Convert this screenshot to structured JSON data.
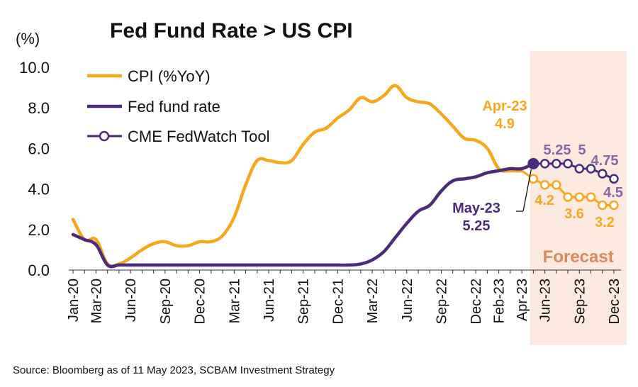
{
  "colors": {
    "cpi": "#F5A81C",
    "fed": "#4B2A7B",
    "cme": "#4B2A7B",
    "cme_marker_fill": "#ffffff",
    "cpi_forecast_marker_fill": "#ffffff",
    "forecast_band": "#FCE9DF",
    "forecast_text": "#D9895A",
    "annotation_cpi": "#F5A81C",
    "annotation_fed": "#4B2A7B",
    "annotation_cme": "#8666A8"
  },
  "chart_data": {
    "type": "line",
    "title": "Fed Fund Rate > US CPI",
    "ylabel": "(%)",
    "ylim": [
      0,
      10
    ],
    "yticks": [
      "0.0",
      "2.0",
      "4.0",
      "6.0",
      "8.0",
      "10.0"
    ],
    "x_tick_labels": [
      "Jan-20",
      "Mar-20",
      "Jun-20",
      "Sep-20",
      "Dec-20",
      "Mar-21",
      "Jun-21",
      "Sep-21",
      "Dec-21",
      "Mar-22",
      "Jun-22",
      "Sep-22",
      "Dec-22",
      "Feb-23",
      "Apr-23",
      "Jun-23",
      "Sep-23",
      "Dec-23"
    ],
    "x_tick_positions": [
      0,
      2,
      5,
      8,
      11,
      14,
      17,
      20,
      23,
      26,
      29,
      32,
      35,
      37,
      39,
      41,
      44,
      47
    ],
    "x_count": 48,
    "legend": [
      "CPI (%YoY)",
      "Fed fund rate",
      "CME FedWatch Tool"
    ],
    "series": [
      {
        "name": "CPI (%YoY)",
        "x": [
          0,
          1,
          2,
          3,
          4,
          5,
          6,
          7,
          8,
          9,
          10,
          11,
          12,
          13,
          14,
          15,
          16,
          17,
          18,
          19,
          20,
          21,
          22,
          23,
          24,
          25,
          26,
          27,
          28,
          29,
          30,
          31,
          32,
          33,
          34,
          35,
          36,
          37,
          38,
          39
        ],
        "values": [
          2.5,
          1.5,
          1.5,
          0.3,
          0.3,
          0.6,
          1.0,
          1.3,
          1.4,
          1.2,
          1.2,
          1.4,
          1.4,
          1.7,
          2.6,
          4.2,
          5.4,
          5.4,
          5.3,
          5.4,
          6.2,
          6.8,
          7.0,
          7.5,
          7.9,
          8.5,
          8.3,
          8.6,
          9.1,
          8.5,
          8.3,
          8.2,
          7.7,
          7.1,
          6.5,
          6.4,
          6.0,
          5.0,
          4.9,
          4.9
        ]
      },
      {
        "name": "Fed fund rate",
        "x": [
          0,
          1,
          2,
          3,
          4,
          5,
          6,
          7,
          8,
          9,
          10,
          11,
          12,
          13,
          14,
          15,
          16,
          17,
          18,
          19,
          20,
          21,
          22,
          23,
          24,
          25,
          26,
          27,
          28,
          29,
          30,
          31,
          32,
          33,
          34,
          35,
          36,
          37,
          38,
          39,
          40
        ],
        "values": [
          1.75,
          1.5,
          1.25,
          0.25,
          0.25,
          0.25,
          0.25,
          0.25,
          0.25,
          0.25,
          0.25,
          0.25,
          0.25,
          0.25,
          0.25,
          0.25,
          0.25,
          0.25,
          0.25,
          0.25,
          0.25,
          0.25,
          0.25,
          0.25,
          0.25,
          0.3,
          0.5,
          0.9,
          1.6,
          2.3,
          2.9,
          3.2,
          3.9,
          4.4,
          4.5,
          4.6,
          4.8,
          4.9,
          5.0,
          5.0,
          5.25
        ]
      },
      {
        "name": "CME FedWatch Tool",
        "x": [
          40,
          41,
          42,
          43,
          44,
          45,
          46,
          47
        ],
        "values": [
          5.25,
          5.25,
          5.25,
          5.25,
          5.0,
          5.0,
          4.75,
          4.5
        ]
      },
      {
        "name": "",
        "x": [
          39,
          40,
          41,
          42,
          43,
          44,
          45,
          46,
          47
        ],
        "values": [
          4.9,
          4.5,
          4.2,
          4.2,
          3.6,
          3.6,
          3.6,
          3.2,
          3.2
        ]
      }
    ],
    "forecast_region": [
      40,
      47
    ],
    "forecast_label": "Forecast",
    "annotations": [
      {
        "text": "Apr-23",
        "value": "4.9"
      },
      {
        "text": "May-23",
        "value": "5.25"
      },
      {
        "values": [
          "5.25",
          "5",
          "4.75"
        ]
      },
      {
        "values": [
          "4.5"
        ]
      },
      {
        "values": [
          "4.2",
          "3.6",
          "3.2"
        ]
      }
    ],
    "grid": false,
    "legend_position": "top-left"
  },
  "source": "Source: Bloomberg as of 11 May 2023, SCBAM Investment Strategy"
}
